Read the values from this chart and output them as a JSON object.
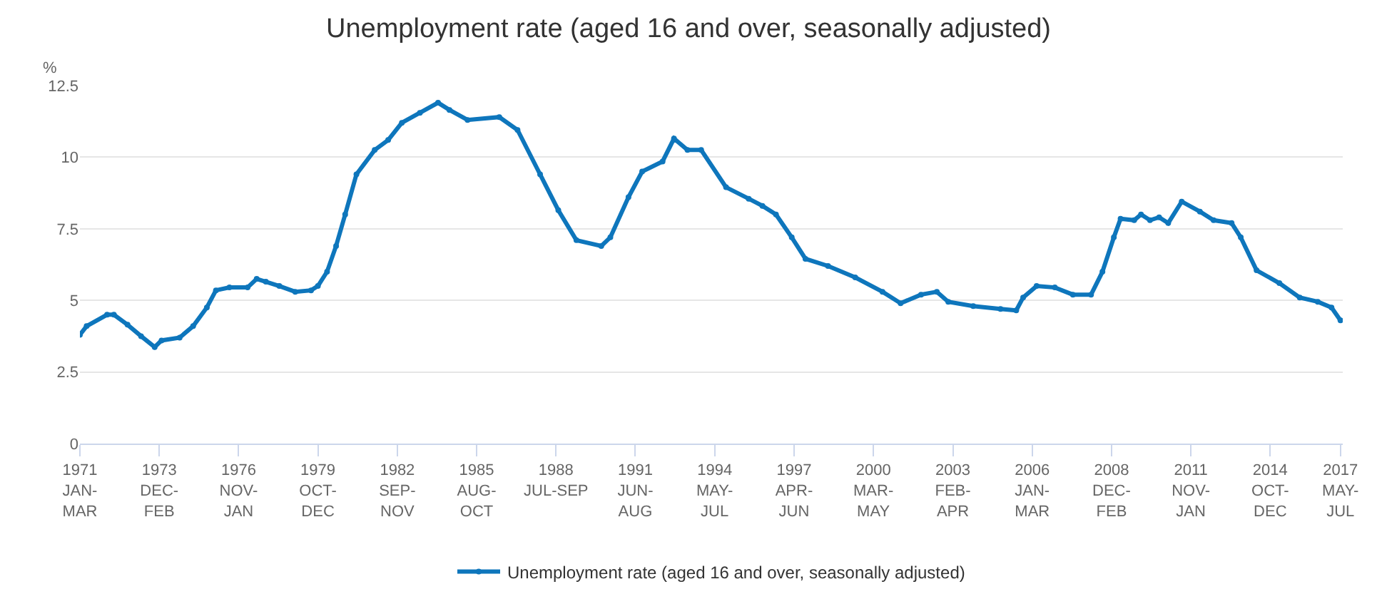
{
  "chart_data": {
    "type": "line",
    "title": "Unemployment rate (aged 16 and over, seasonally adjusted)",
    "ylabel": "%",
    "x": [
      "1971-01",
      "1971-04",
      "1972-01",
      "1972-04",
      "1972-10",
      "1973-04",
      "1973-10",
      "1974-01",
      "1974-09",
      "1975-03",
      "1975-09",
      "1976-01",
      "1976-07",
      "1977-03",
      "1977-07",
      "1977-11",
      "1978-05",
      "1978-12",
      "1979-07",
      "1979-10",
      "1980-02",
      "1980-06",
      "1980-10",
      "1981-03",
      "1981-11",
      "1982-05",
      "1982-11",
      "1983-07",
      "1984-03",
      "1984-08",
      "1985-04",
      "1986-06",
      "1987-02",
      "1987-12",
      "1988-08",
      "1989-04",
      "1990-03",
      "1990-07",
      "1991-03",
      "1991-09",
      "1992-06",
      "1992-11",
      "1993-05",
      "1993-11",
      "1994-10",
      "1995-08",
      "1996-02",
      "1996-08",
      "1997-03",
      "1997-09",
      "1998-07",
      "1999-07",
      "2000-07",
      "2001-03",
      "2001-12",
      "2002-07",
      "2002-12",
      "2003-11",
      "2004-11",
      "2005-06",
      "2005-09",
      "2006-03",
      "2006-11",
      "2007-07",
      "2008-03",
      "2008-08",
      "2009-01",
      "2009-04",
      "2009-10",
      "2010-01",
      "2010-05",
      "2010-09",
      "2011-01",
      "2011-07",
      "2012-03",
      "2012-09",
      "2013-05",
      "2013-09",
      "2014-04",
      "2015-02",
      "2015-11",
      "2016-07",
      "2017-01",
      "2017-05"
    ],
    "series": [
      {
        "name": "Unemployment rate (aged 16 and over, seasonally adjusted)",
        "color": "#0e76bc",
        "values": [
          3.8,
          4.1,
          4.5,
          4.5,
          4.15,
          3.75,
          3.37,
          3.6,
          3.7,
          4.1,
          4.75,
          5.35,
          5.45,
          5.45,
          5.75,
          5.65,
          5.5,
          5.3,
          5.35,
          5.5,
          6.0,
          6.9,
          8.0,
          9.4,
          10.25,
          10.6,
          11.2,
          11.55,
          11.9,
          11.65,
          11.3,
          11.4,
          10.95,
          9.4,
          8.15,
          7.1,
          6.9,
          7.2,
          8.6,
          9.5,
          9.85,
          10.65,
          10.25,
          10.25,
          8.95,
          8.55,
          8.3,
          8.0,
          7.2,
          6.45,
          6.2,
          5.8,
          5.3,
          4.9,
          5.2,
          5.3,
          4.95,
          4.8,
          4.7,
          4.65,
          5.1,
          5.5,
          5.45,
          5.2,
          5.2,
          6.0,
          7.2,
          7.85,
          7.8,
          8.0,
          7.8,
          7.9,
          7.7,
          8.45,
          8.1,
          7.8,
          7.7,
          7.2,
          6.05,
          5.6,
          5.1,
          4.95,
          4.75,
          4.3
        ]
      }
    ],
    "xlim": [
      "1971-01",
      "2017-06"
    ],
    "xticks": [
      {
        "value": "1971-01",
        "label": "1971\nJAN-\nMAR"
      },
      {
        "value": "1973-12",
        "label": "1973\nDEC-\nFEB"
      },
      {
        "value": "1976-11",
        "label": "1976\nNOV-\nJAN"
      },
      {
        "value": "1979-10",
        "label": "1979\nOCT-\nDEC"
      },
      {
        "value": "1982-09",
        "label": "1982\nSEP-\nNOV"
      },
      {
        "value": "1985-08",
        "label": "1985\nAUG-\nOCT"
      },
      {
        "value": "1988-07",
        "label": "1988\nJUL-SEP"
      },
      {
        "value": "1991-06",
        "label": "1991\nJUN-\nAUG"
      },
      {
        "value": "1994-05",
        "label": "1994\nMAY-\nJUL"
      },
      {
        "value": "1997-04",
        "label": "1997\nAPR-\nJUN"
      },
      {
        "value": "2000-03",
        "label": "2000\nMAR-\nMAY"
      },
      {
        "value": "2003-02",
        "label": "2003\nFEB-\nAPR"
      },
      {
        "value": "2006-01",
        "label": "2006\nJAN-\nMAR"
      },
      {
        "value": "2008-12",
        "label": "2008\nDEC-\nFEB"
      },
      {
        "value": "2011-11",
        "label": "2011\nNOV-\nJAN"
      },
      {
        "value": "2014-10",
        "label": "2014\nOCT-\nDEC"
      },
      {
        "value": "2017-05",
        "label": "2017\nMAY-\nJUL"
      }
    ],
    "ylim": [
      0,
      12.5
    ],
    "yticks": [
      0,
      2.5,
      5,
      7.5,
      10,
      12.5
    ],
    "grid": "y",
    "legend": "bottom",
    "marker": "circle",
    "line_style": "solid"
  }
}
